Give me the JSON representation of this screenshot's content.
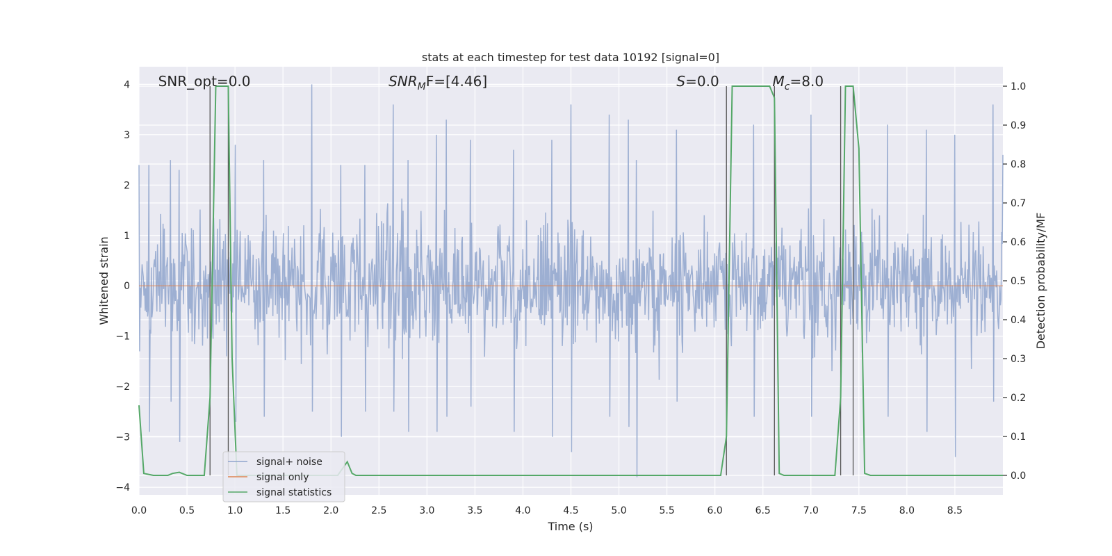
{
  "chart_data": {
    "type": "line",
    "title": "stats at each timestep for test data 10192 [signal=0]",
    "xlabel": "Time (s)",
    "ylabel_left": "Whitened strain",
    "ylabel_right": "Detection probability/MF",
    "xlim": [
      0,
      9.0
    ],
    "ylim_left": [
      -4.15,
      4.35
    ],
    "ylim_right": [
      -0.05,
      1.05
    ],
    "x_ticks": [
      0.0,
      0.5,
      1.0,
      1.5,
      2.0,
      2.5,
      3.0,
      3.5,
      4.0,
      4.5,
      5.0,
      5.5,
      6.0,
      6.5,
      7.0,
      7.5,
      8.0,
      8.5
    ],
    "x_tick_labels": [
      "0.0",
      "0.5",
      "1.0",
      "1.5",
      "2.0",
      "2.5",
      "3.0",
      "3.5",
      "4.0",
      "4.5",
      "5.0",
      "5.5",
      "6.0",
      "6.5",
      "7.0",
      "7.5",
      "8.0",
      "8.5"
    ],
    "y_left_ticks": [
      -4,
      -3,
      -2,
      -1,
      0,
      1,
      2,
      3,
      4
    ],
    "y_left_tick_labels": [
      "−4",
      "−3",
      "−2",
      "−1",
      "0",
      "1",
      "2",
      "3",
      "4"
    ],
    "y_right_ticks": [
      0.0,
      0.1,
      0.2,
      0.3,
      0.4,
      0.5,
      0.6,
      0.7,
      0.8,
      0.9,
      1.0
    ],
    "y_right_tick_labels": [
      "0.0",
      "0.1",
      "0.2",
      "0.3",
      "0.4",
      "0.5",
      "0.6",
      "0.7",
      "0.8",
      "0.9",
      "1.0"
    ],
    "grid": true,
    "legend_position": "lower-left",
    "annotations": [
      {
        "key": "snr_opt",
        "text": "SNR_opt=0.0",
        "x": 0.2
      },
      {
        "key": "snr_mf",
        "text": "SNR",
        "sub": "M",
        "rest": "F=[4.46]",
        "italic": true,
        "x": 2.6
      },
      {
        "key": "s",
        "text": "S",
        "rest": "=0.0",
        "italic": true,
        "x": 5.6
      },
      {
        "key": "mc",
        "text": "M",
        "sub": "c",
        "rest": "=8.0",
        "italic": true,
        "x": 6.6
      }
    ],
    "vertical_lines": [
      0.74,
      0.93,
      6.12,
      6.62,
      7.31,
      7.44
    ],
    "series": [
      {
        "name": "signal+ noise",
        "color": "#8fa4cd",
        "kind": "noise",
        "envelope_peaks": [
          [
            0.0,
            2.4,
            -1.3
          ],
          [
            0.1,
            2.4,
            -2.9
          ],
          [
            0.33,
            2.5,
            -2.3
          ],
          [
            0.42,
            2.3,
            -3.1
          ],
          [
            1.0,
            2.8,
            -2.7
          ],
          [
            1.3,
            2.5,
            -2.6
          ],
          [
            1.8,
            4.0,
            -2.5
          ],
          [
            2.1,
            2.4,
            -3.0
          ],
          [
            2.35,
            2.4,
            -2.5
          ],
          [
            2.65,
            3.6,
            -2.5
          ],
          [
            2.8,
            2.5,
            -2.9
          ],
          [
            3.1,
            3.0,
            -2.9
          ],
          [
            3.2,
            3.3,
            -2.6
          ],
          [
            3.45,
            2.9,
            -2.4
          ],
          [
            3.9,
            2.7,
            -2.9
          ],
          [
            4.3,
            2.9,
            -3.0
          ],
          [
            4.5,
            3.6,
            -3.3
          ],
          [
            4.9,
            3.4,
            -2.6
          ],
          [
            5.1,
            3.3,
            -2.8
          ],
          [
            5.18,
            2.5,
            -3.8
          ],
          [
            5.6,
            3.1,
            -2.3
          ],
          [
            6.4,
            3.2,
            -2.6
          ],
          [
            7.0,
            3.4,
            -2.6
          ],
          [
            7.8,
            3.2,
            -2.6
          ],
          [
            8.2,
            3.1,
            -2.9
          ],
          [
            8.5,
            3.0,
            -3.4
          ],
          [
            8.9,
            3.6,
            -2.3
          ],
          [
            9.0,
            2.6,
            -2.0
          ]
        ]
      },
      {
        "name": "signal only",
        "color": "#dd8452",
        "kind": "constant",
        "value": 0.0
      },
      {
        "name": "signal statistics",
        "color": "#55a868",
        "kind": "line",
        "axis": "right",
        "x": [
          0.0,
          0.05,
          0.15,
          0.3,
          0.35,
          0.42,
          0.5,
          0.55,
          0.68,
          0.74,
          0.8,
          0.93,
          0.97,
          1.02,
          1.1,
          1.5,
          2.0,
          2.07,
          2.17,
          2.22,
          2.26,
          2.5,
          3.0,
          4.0,
          5.0,
          6.0,
          6.06,
          6.12,
          6.18,
          6.25,
          6.5,
          6.57,
          6.62,
          6.67,
          6.72,
          6.8,
          7.0,
          7.25,
          7.31,
          7.36,
          7.44,
          7.5,
          7.56,
          7.62,
          8.0,
          8.5,
          9.0
        ],
        "y": [
          0.18,
          0.005,
          0.0,
          0.0,
          0.005,
          0.008,
          0.0,
          0.0,
          0.0,
          0.2,
          1.0,
          1.0,
          0.3,
          0.0,
          0.0,
          0.0,
          0.0,
          0.0,
          0.035,
          0.005,
          0.0,
          0.0,
          0.0,
          0.0,
          0.0,
          0.0,
          0.0,
          0.1,
          1.0,
          1.0,
          1.0,
          1.0,
          0.97,
          0.005,
          0.0,
          0.0,
          0.0,
          0.0,
          0.2,
          1.0,
          1.0,
          0.84,
          0.005,
          0.0,
          0.0,
          0.0,
          0.0
        ]
      }
    ]
  }
}
